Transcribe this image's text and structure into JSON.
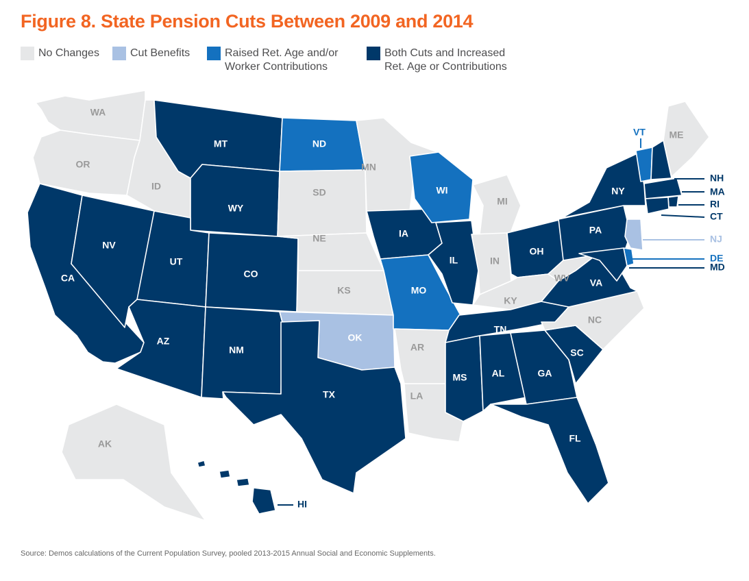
{
  "title": "Figure 8. State Pension Cuts Between 2009 and 2014",
  "colors": {
    "none": "#e6e7e8",
    "cut": "#a9c1e3",
    "raised": "#1471bf",
    "both": "#003869",
    "label_light": "#9a9a9a",
    "label_dark": "#ffffff"
  },
  "legend": [
    {
      "key": "none",
      "label": "No Changes"
    },
    {
      "key": "cut",
      "label": "Cut Benefits"
    },
    {
      "key": "raised",
      "label": "Raised Ret. Age and/or\nWorker Contributions"
    },
    {
      "key": "both",
      "label": "Both Cuts and Increased\nRet. Age or Contributions"
    }
  ],
  "states": [
    {
      "abbr": "WA",
      "category": "none"
    },
    {
      "abbr": "OR",
      "category": "none"
    },
    {
      "abbr": "CA",
      "category": "both"
    },
    {
      "abbr": "NV",
      "category": "both"
    },
    {
      "abbr": "ID",
      "category": "none"
    },
    {
      "abbr": "MT",
      "category": "both"
    },
    {
      "abbr": "WY",
      "category": "both"
    },
    {
      "abbr": "UT",
      "category": "both"
    },
    {
      "abbr": "CO",
      "category": "both"
    },
    {
      "abbr": "AZ",
      "category": "both"
    },
    {
      "abbr": "NM",
      "category": "both"
    },
    {
      "abbr": "ND",
      "category": "raised"
    },
    {
      "abbr": "SD",
      "category": "none"
    },
    {
      "abbr": "NE",
      "category": "none"
    },
    {
      "abbr": "KS",
      "category": "none"
    },
    {
      "abbr": "OK",
      "category": "cut"
    },
    {
      "abbr": "TX",
      "category": "both"
    },
    {
      "abbr": "MN",
      "category": "none"
    },
    {
      "abbr": "IA",
      "category": "both"
    },
    {
      "abbr": "MO",
      "category": "raised"
    },
    {
      "abbr": "AR",
      "category": "none"
    },
    {
      "abbr": "LA",
      "category": "none"
    },
    {
      "abbr": "WI",
      "category": "raised"
    },
    {
      "abbr": "IL",
      "category": "both"
    },
    {
      "abbr": "MI",
      "category": "none"
    },
    {
      "abbr": "IN",
      "category": "none"
    },
    {
      "abbr": "OH",
      "category": "both"
    },
    {
      "abbr": "KY",
      "category": "none"
    },
    {
      "abbr": "TN",
      "category": "both"
    },
    {
      "abbr": "MS",
      "category": "both"
    },
    {
      "abbr": "AL",
      "category": "both"
    },
    {
      "abbr": "GA",
      "category": "both"
    },
    {
      "abbr": "FL",
      "category": "both"
    },
    {
      "abbr": "SC",
      "category": "both"
    },
    {
      "abbr": "NC",
      "category": "none"
    },
    {
      "abbr": "VA",
      "category": "both"
    },
    {
      "abbr": "WV",
      "category": "none"
    },
    {
      "abbr": "PA",
      "category": "both"
    },
    {
      "abbr": "NY",
      "category": "both"
    },
    {
      "abbr": "ME",
      "category": "none"
    },
    {
      "abbr": "AK",
      "category": "none"
    },
    {
      "abbr": "HI",
      "category": "both"
    },
    {
      "abbr": "VT",
      "category": "raised"
    },
    {
      "abbr": "NH",
      "category": "both"
    },
    {
      "abbr": "MA",
      "category": "both"
    },
    {
      "abbr": "RI",
      "category": "both"
    },
    {
      "abbr": "CT",
      "category": "both"
    },
    {
      "abbr": "NJ",
      "category": "cut"
    },
    {
      "abbr": "DE",
      "category": "raised"
    },
    {
      "abbr": "MD",
      "category": "both"
    }
  ],
  "source": "Source: Demos calculations of the Current Population Survey, pooled 2013-2015 Annual Social and Economic Supplements."
}
